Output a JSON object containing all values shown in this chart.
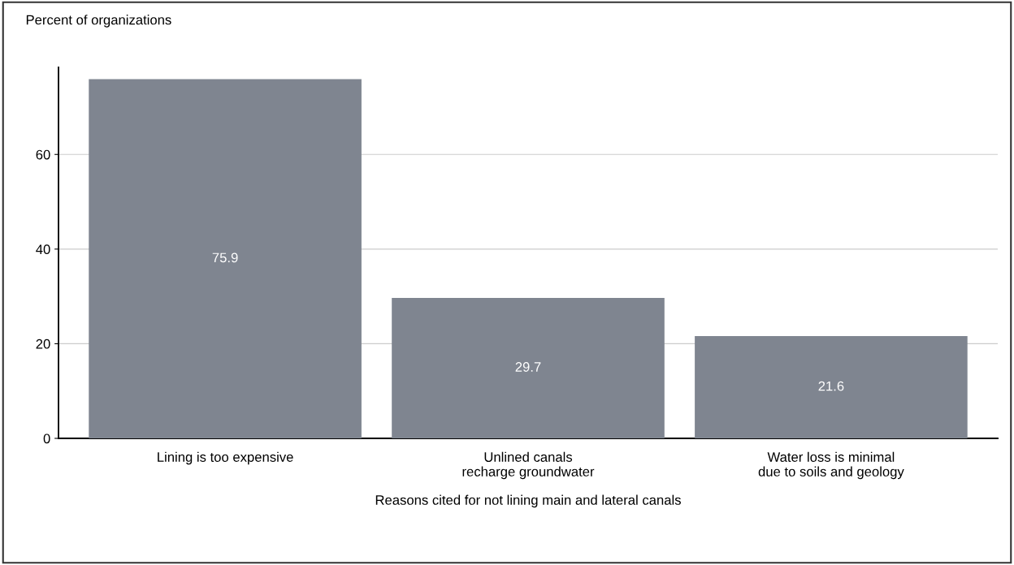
{
  "chart_data": {
    "type": "bar",
    "ylabel": "Percent of organizations",
    "xlabel": "Reasons cited for not lining main and lateral canals",
    "categories": [
      "Lining is too expensive",
      "Unlined canals\nrecharge groundwater",
      "Water loss is minimal\ndue to soils and geology"
    ],
    "values": [
      75.9,
      29.7,
      21.6
    ],
    "color": "#7f8590",
    "ylim": [
      0,
      78.4
    ],
    "yticks": [
      0,
      20,
      40,
      60
    ],
    "grid": "y",
    "data_labels": true
  }
}
